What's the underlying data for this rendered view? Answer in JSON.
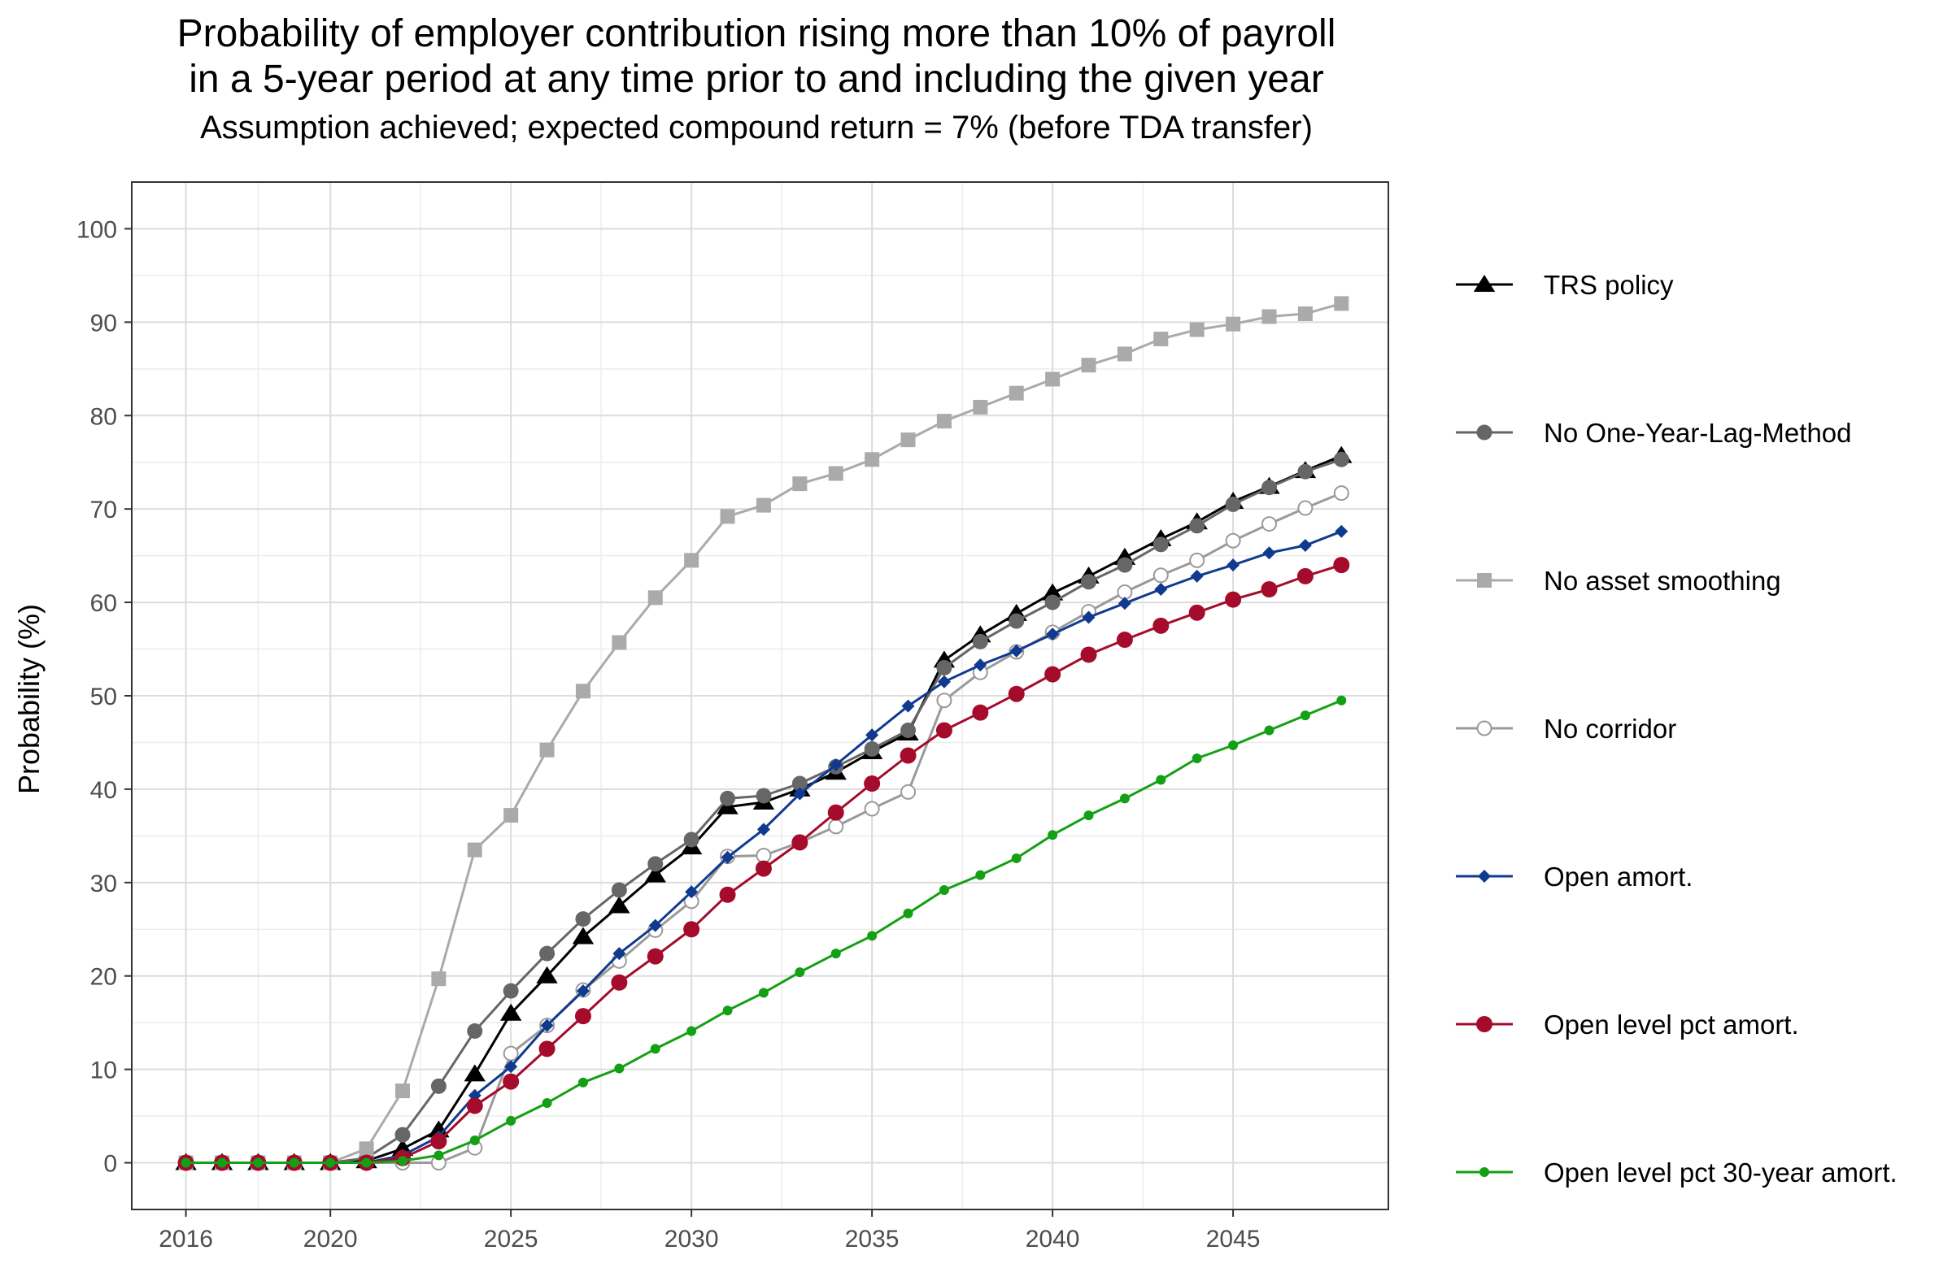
{
  "chart_data": {
    "type": "line",
    "title": "Probability of employer contribution rising more than 10% of payroll",
    "title_line2": "in a 5-year period at any time prior to and including the given year",
    "subtitle": "Assumption achieved; expected compound return = 7% (before TDA transfer)",
    "xlabel": "",
    "ylabel": "Probability (%)",
    "xlim": [
      2014.5,
      2049.3
    ],
    "ylim": [
      -5,
      105
    ],
    "x_ticks": [
      2016,
      2020,
      2025,
      2030,
      2035,
      2040,
      2045
    ],
    "y_ticks": [
      0,
      10,
      20,
      30,
      40,
      50,
      60,
      70,
      80,
      90,
      100
    ],
    "grid": true,
    "legend_position": "right",
    "x": [
      2016,
      2017,
      2018,
      2019,
      2020,
      2021,
      2022,
      2023,
      2024,
      2025,
      2026,
      2027,
      2028,
      2029,
      2030,
      2031,
      2032,
      2033,
      2034,
      2035,
      2036,
      2037,
      2038,
      2039,
      2040,
      2041,
      2042,
      2043,
      2044,
      2045,
      2046,
      2047,
      2048
    ],
    "series": [
      {
        "name": "TRS policy",
        "color": "#000000",
        "marker": "triangle",
        "values": [
          0,
          0,
          0,
          0,
          0,
          0.2,
          1.5,
          3.5,
          9.5,
          16,
          20,
          24.2,
          27.5,
          30.8,
          33.8,
          38.1,
          38.6,
          40,
          41.8,
          44,
          46,
          53.8,
          56.5,
          58.8,
          61,
          62.8,
          64.8,
          66.8,
          68.6,
          70.8,
          72.4,
          74.1,
          75.7
        ]
      },
      {
        "name": "No One-Year-Lag-Method",
        "color": "#666666",
        "marker": "circle",
        "values": [
          0,
          0,
          0,
          0,
          0,
          0.5,
          3,
          8.2,
          14.1,
          18.4,
          22.4,
          26.1,
          29.2,
          32,
          34.6,
          39,
          39.3,
          40.6,
          42.4,
          44.3,
          46.3,
          53,
          55.8,
          58,
          60,
          62.2,
          64,
          66.2,
          68.2,
          70.5,
          72.3,
          74,
          75.3
        ]
      },
      {
        "name": "No asset smoothing",
        "color": "#aaaaaa",
        "marker": "square",
        "values": [
          0,
          0,
          0,
          0,
          0,
          1.5,
          7.7,
          19.7,
          33.5,
          37.2,
          44.2,
          50.5,
          55.7,
          60.5,
          64.5,
          69.2,
          70.4,
          72.7,
          73.8,
          75.3,
          77.4,
          79.4,
          80.9,
          82.4,
          83.9,
          85.4,
          86.6,
          88.2,
          89.2,
          89.8,
          90.6,
          90.9,
          92
        ]
      },
      {
        "name": "No corridor",
        "color": "#9a9a9a",
        "marker": "open-circle",
        "values": [
          0,
          0,
          0,
          0,
          0,
          0,
          0,
          0,
          1.6,
          11.7,
          14.7,
          18.5,
          21.6,
          24.9,
          28,
          32.8,
          32.9,
          34.3,
          36,
          37.9,
          39.7,
          49.5,
          52.5,
          54.7,
          56.8,
          59,
          61.1,
          62.9,
          64.5,
          66.6,
          68.4,
          70.1,
          71.7
        ]
      },
      {
        "name": "Open amort.",
        "color": "#103a8f",
        "marker": "diamond",
        "values": [
          0,
          0,
          0,
          0,
          0,
          0,
          0.8,
          2.8,
          7.2,
          10.3,
          14.7,
          18.4,
          22.4,
          25.4,
          29,
          32.7,
          35.7,
          39.5,
          42.6,
          45.8,
          48.9,
          51.5,
          53.3,
          54.8,
          56.6,
          58.4,
          59.9,
          61.4,
          62.8,
          64,
          65.3,
          66.1,
          67.6
        ]
      },
      {
        "name": "Open level pct amort.",
        "color": "#a50b2b",
        "marker": "big-circle",
        "values": [
          0,
          0,
          0,
          0,
          0,
          0,
          0.5,
          2.3,
          6.1,
          8.7,
          12.2,
          15.7,
          19.3,
          22.1,
          25,
          28.7,
          31.5,
          34.3,
          37.5,
          40.6,
          43.6,
          46.3,
          48.2,
          50.2,
          52.3,
          54.4,
          56,
          57.5,
          58.9,
          60.3,
          61.4,
          62.8,
          64
        ]
      },
      {
        "name": "Open level pct 30-year amort.",
        "color": "#14a014",
        "marker": "small-dot",
        "values": [
          0,
          0,
          0,
          0,
          0,
          0,
          0.2,
          0.8,
          2.4,
          4.5,
          6.4,
          8.6,
          10.1,
          12.2,
          14.1,
          16.3,
          18.2,
          20.4,
          22.4,
          24.3,
          26.7,
          29.2,
          30.8,
          32.6,
          35.1,
          37.2,
          39,
          41,
          43.3,
          44.7,
          46.3,
          47.9,
          49.5
        ]
      }
    ]
  }
}
